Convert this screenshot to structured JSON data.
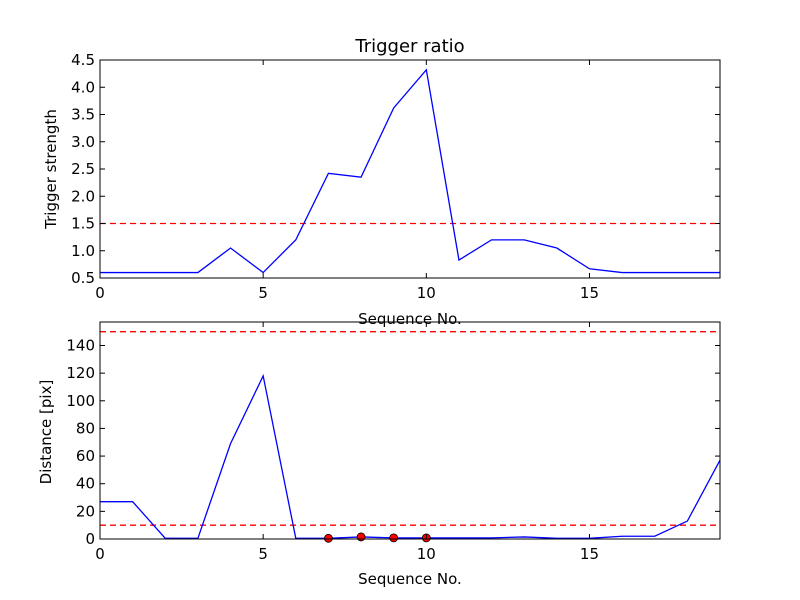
{
  "chart_data": [
    {
      "type": "line",
      "title": "Trigger ratio",
      "xlabel": "Sequence No.",
      "ylabel": "Trigger strength",
      "xlim": [
        0,
        19
      ],
      "ylim": [
        0.5,
        4.5
      ],
      "xticks": [
        0,
        5,
        10,
        15
      ],
      "yticks": [
        0.5,
        1.0,
        1.5,
        2.0,
        2.5,
        3.0,
        3.5,
        4.0,
        4.5
      ],
      "ytick_labels": [
        "0.5",
        "1.0",
        "1.5",
        "2.0",
        "2.5",
        "3.0",
        "3.5",
        "4.0",
        "4.5"
      ],
      "grid": false,
      "series": [
        {
          "color": "#0000ff",
          "x": [
            0,
            1,
            2,
            3,
            4,
            5,
            6,
            7,
            8,
            9,
            10,
            11,
            12,
            13,
            14,
            15,
            16,
            17,
            18,
            19
          ],
          "y": [
            0.6,
            0.6,
            0.6,
            0.6,
            1.05,
            0.6,
            1.2,
            2.42,
            2.35,
            3.62,
            4.32,
            0.83,
            1.2,
            1.2,
            1.05,
            0.67,
            0.6,
            0.6,
            0.6,
            0.6
          ]
        }
      ],
      "hlines": [
        {
          "y": 1.5,
          "color": "#ff0000",
          "style": "dashed"
        }
      ],
      "markers": []
    },
    {
      "type": "line",
      "title": "",
      "xlabel": "Sequence No.",
      "ylabel": "Distance [pix]",
      "xlim": [
        0,
        19
      ],
      "ylim": [
        0,
        157
      ],
      "xticks": [
        0,
        5,
        10,
        15
      ],
      "yticks": [
        0,
        20,
        40,
        60,
        80,
        100,
        120,
        140
      ],
      "ytick_labels": [
        "0",
        "20",
        "40",
        "60",
        "80",
        "100",
        "120",
        "140"
      ],
      "grid": false,
      "series": [
        {
          "color": "#0000ff",
          "x": [
            0,
            1,
            2,
            3,
            4,
            5,
            6,
            7,
            8,
            9,
            10,
            11,
            12,
            13,
            14,
            15,
            16,
            17,
            18,
            19
          ],
          "y": [
            27,
            27,
            0.5,
            0.5,
            69,
            118,
            0.5,
            0.5,
            1.5,
            0.8,
            0.8,
            0.8,
            0.8,
            1.5,
            0.5,
            0.5,
            2,
            2,
            13,
            57
          ]
        }
      ],
      "hlines": [
        {
          "y": 150,
          "color": "#ff0000",
          "style": "dashed"
        },
        {
          "y": 10,
          "color": "#ff0000",
          "style": "dashed"
        }
      ],
      "markers": [
        {
          "x": 7,
          "y": 0.5
        },
        {
          "x": 8,
          "y": 1.5
        },
        {
          "x": 9,
          "y": 0.8
        },
        {
          "x": 10,
          "y": 0.8
        }
      ]
    }
  ]
}
